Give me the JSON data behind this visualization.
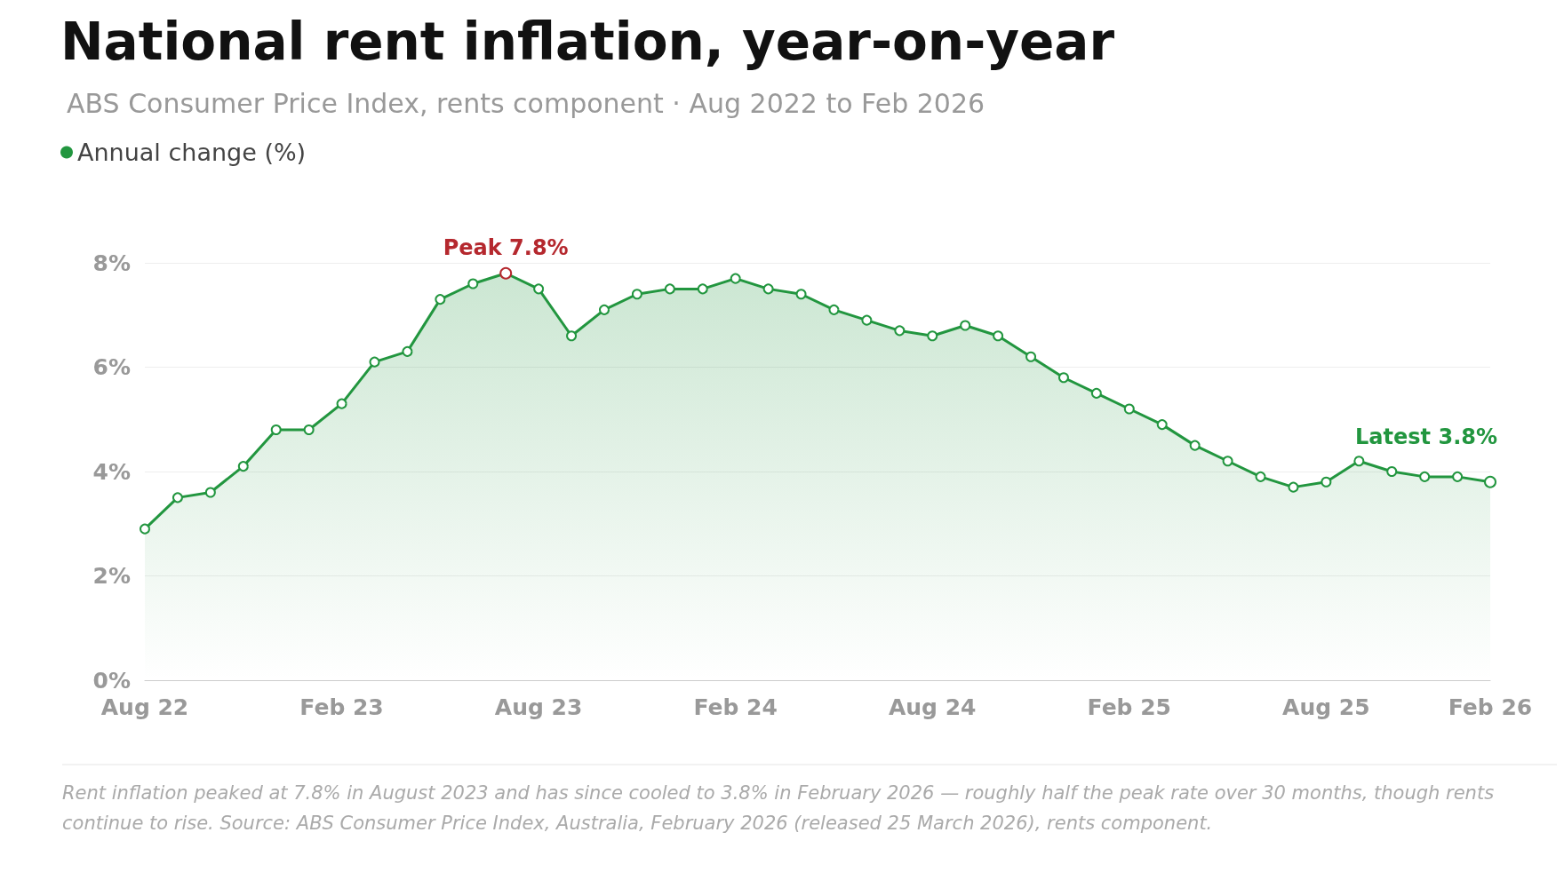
{
  "chart_data": {
    "type": "area",
    "title": "National rent inflation, year-on-year",
    "subtitle": "ABS Consumer Price Index, rents component · Aug 2022 to Feb 2026",
    "categories": [
      "Aug 22",
      null,
      null,
      null,
      null,
      null,
      "Feb 23",
      null,
      null,
      null,
      null,
      null,
      "Aug 23",
      null,
      null,
      null,
      null,
      null,
      "Feb 24",
      null,
      null,
      null,
      null,
      null,
      "Aug 24",
      null,
      null,
      null,
      null,
      null,
      "Feb 25",
      null,
      null,
      null,
      null,
      null,
      "Aug 25",
      null,
      null,
      null,
      null,
      "Feb 26"
    ],
    "series": [
      {
        "name": "Annual change (%)",
        "color": "#22963f",
        "values": [
          2.9,
          3.5,
          3.6,
          4.1,
          4.8,
          4.8,
          5.3,
          6.1,
          6.3,
          7.3,
          7.6,
          7.8,
          7.5,
          6.6,
          7.1,
          7.4,
          7.5,
          7.5,
          7.7,
          7.5,
          7.4,
          7.1,
          6.9,
          6.7,
          6.6,
          6.8,
          6.6,
          6.2,
          5.8,
          5.5,
          5.2,
          4.9,
          4.5,
          4.2,
          3.9,
          3.7,
          3.8,
          4.2,
          4.0,
          3.9,
          3.9,
          3.8
        ]
      }
    ],
    "ylim": [
      0,
      8
    ],
    "yticks": [
      {
        "value": 0,
        "label": "0%"
      },
      {
        "value": 2,
        "label": "2%"
      },
      {
        "value": 4,
        "label": "4%"
      },
      {
        "value": 6,
        "label": "6%"
      },
      {
        "value": 8,
        "label": "8%"
      }
    ],
    "grid": "y",
    "legend": "top left",
    "marker": "circle",
    "line_style": "solid",
    "annotations": [
      {
        "text": "Peak 7.8%",
        "y": 7.8
      },
      {
        "text": "Latest 3.8%",
        "y": 3.8
      },
      "Rent inflation peaked at 7.8% in August 2023 and has since cooled to 3.8% in February 2026 — roughly half the peak rate over 30 months, though rents continue to rise. Source: ABS Consumer Price Index, Australia, February 2026 (released 25 March 2026), rents component."
    ]
  }
}
